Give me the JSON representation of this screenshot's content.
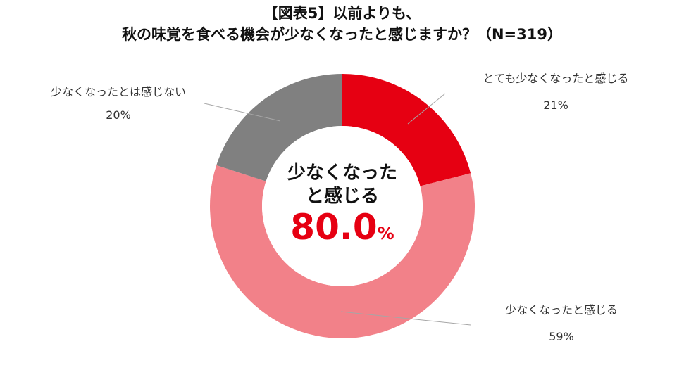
{
  "chart_data": {
    "type": "pie",
    "donut": true,
    "title": [
      "【図表5】以前よりも、",
      "秋の味覚を食べる機会が少なくなったと感じますか？（N=319）"
    ],
    "slices": [
      {
        "label": "とても少なくなったと感じる",
        "value": 21,
        "pct_label": "21%",
        "color": "#e60012"
      },
      {
        "label": "少なくなったと感じる",
        "value": 59,
        "pct_label": "59%",
        "color": "#f28189"
      },
      {
        "label": "少なくなったとは感じない",
        "value": 20,
        "pct_label": "20%",
        "color": "#808080"
      }
    ],
    "center": {
      "line1": "少なくなった",
      "line2": "と感じる",
      "value": "80.0",
      "unit": "%",
      "value_color": "#e60012"
    }
  }
}
